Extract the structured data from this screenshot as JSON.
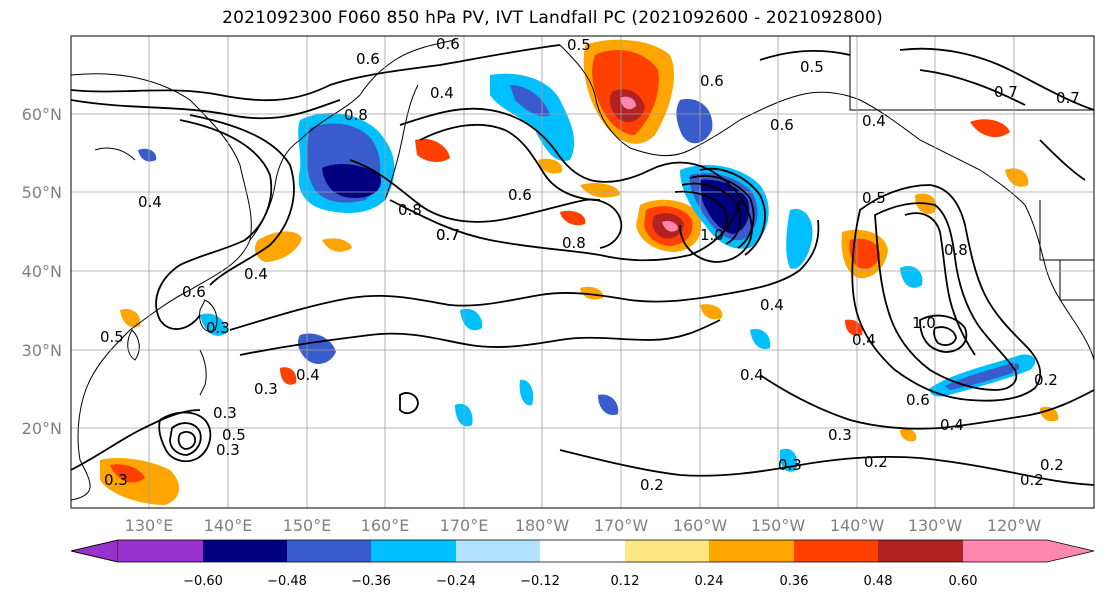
{
  "title": "2021092300 F060 850 hPa PV, IVT Landfall PC (2021092600 - 2021092800)",
  "lat_labels": [
    "60°N",
    "50°N",
    "40°N",
    "30°N",
    "20°N"
  ],
  "lon_labels": [
    "130°E",
    "140°E",
    "150°E",
    "160°E",
    "170°E",
    "180°W",
    "170°W",
    "160°W",
    "150°W",
    "140°W",
    "130°W",
    "120°W"
  ],
  "colorbar": {
    "colors": [
      "#9932cc",
      "#000080",
      "#3a5bcc",
      "#00bfff",
      "#b2e2ff",
      "#ffffff",
      "#ffe680",
      "#ffa500",
      "#ff4000",
      "#b22222",
      "#ff88b0"
    ],
    "tick_labels": [
      "−0.60",
      "−0.48",
      "−0.36",
      "−0.24",
      "−0.12",
      "0.12",
      "0.24",
      "0.36",
      "0.48",
      "0.60"
    ]
  },
  "contour_labels": [
    "0.6",
    "0.5",
    "0.6",
    "0.5",
    "0.4",
    "0.8",
    "0.7",
    "0.6",
    "0.4",
    "0.7",
    "0.6",
    "0.4",
    "0.8",
    "0.8",
    "0.7",
    "0.6",
    "0.4",
    "0.5",
    "0.4",
    "0.6",
    "0.3",
    "0.5",
    "0.3",
    "0.4",
    "0.3",
    "0.4",
    "0.3",
    "0.3",
    "0.2",
    "0.2",
    "0.3",
    "0.4",
    "0.2",
    "0.2",
    "0.8",
    "1.0",
    "1.0",
    "0.7",
    "0.4",
    "0.6",
    "0.3",
    "0.5",
    "0.2"
  ]
}
